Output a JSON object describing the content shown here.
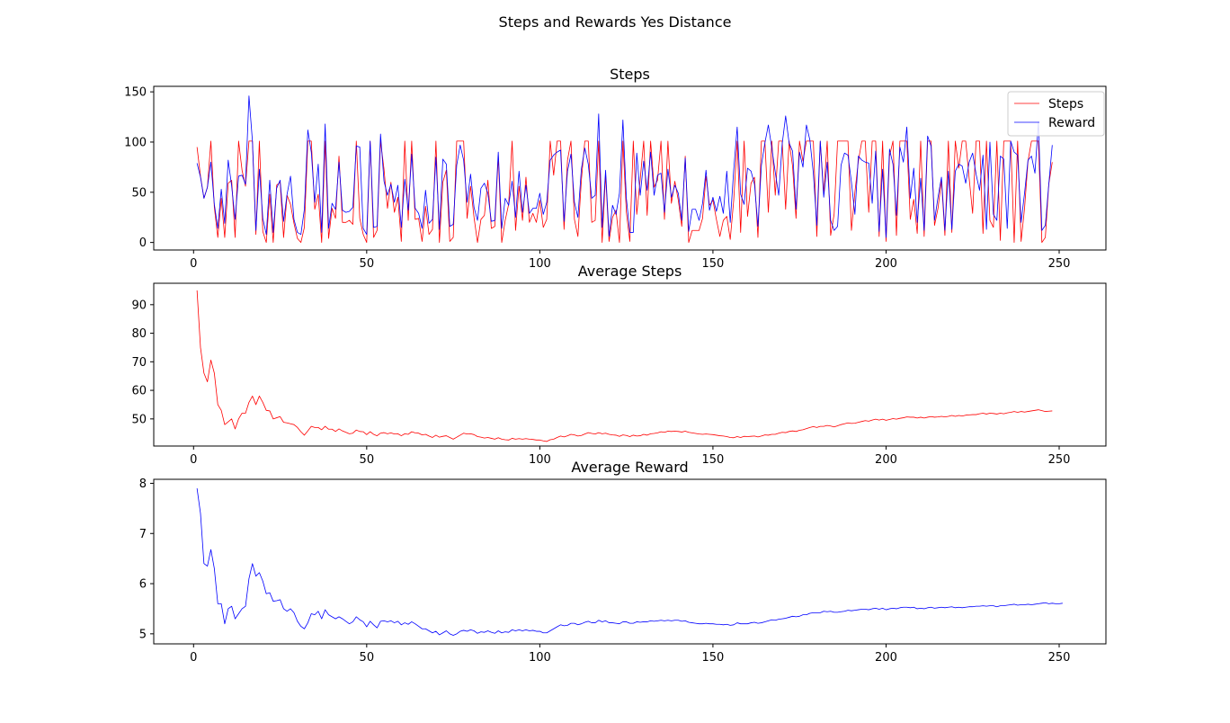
{
  "figure": {
    "suptitle": "Steps and Rewards Yes Distance"
  },
  "colors": {
    "steps": "#ff0000",
    "reward": "#0000ff",
    "axis": "#000000",
    "background": "#ffffff"
  },
  "chart_data": [
    {
      "type": "line",
      "title": "Steps",
      "xlabel": "",
      "ylabel": "",
      "xlim": [
        -11.5,
        263.5
      ],
      "ylim": [
        -7.5,
        155.5
      ],
      "xticks": [
        0,
        50,
        100,
        150,
        200,
        250
      ],
      "yticks": [
        0,
        50,
        100,
        150
      ],
      "grid": false,
      "legend": {
        "position": "top-right",
        "entries": [
          "Steps",
          "Reward"
        ]
      },
      "x_start": 1,
      "series": [
        {
          "name": "Steps",
          "color": "#ff0000",
          "values": [
            95,
            66,
            44,
            55,
            101,
            35,
            5,
            44,
            5,
            59,
            62,
            5,
            101,
            72,
            56,
            101,
            101,
            8,
            101,
            11,
            0,
            48,
            0,
            57,
            60,
            5,
            47,
            38,
            19,
            4,
            0,
            15,
            101,
            101,
            33,
            48,
            0,
            101,
            4,
            34,
            24,
            86,
            20,
            20,
            22,
            18,
            101,
            24,
            8,
            0,
            101,
            5,
            12,
            101,
            73,
            34,
            60,
            30,
            45,
            1,
            101,
            22,
            101,
            23,
            24,
            1,
            36,
            8,
            13,
            101,
            0,
            60,
            72,
            1,
            5,
            101,
            101,
            101,
            24,
            56,
            25,
            0,
            23,
            27,
            62,
            14,
            16,
            86,
            0,
            22,
            38,
            101,
            12,
            56,
            22,
            65,
            20,
            29,
            20,
            42,
            15,
            23,
            101,
            67,
            101,
            101,
            13,
            82,
            101,
            23,
            6,
            62,
            101,
            101,
            20,
            22,
            101,
            0,
            68,
            1,
            25,
            32,
            0,
            101,
            30,
            1,
            101,
            28,
            63,
            101,
            27,
            101,
            55,
            62,
            101,
            23,
            101,
            39,
            61,
            42,
            16,
            86,
            0,
            12,
            12,
            12,
            24,
            66,
            37,
            42,
            23,
            6,
            22,
            26,
            3,
            42,
            101,
            10,
            101,
            26,
            59,
            65,
            5,
            101,
            101,
            30,
            101,
            47,
            101,
            101,
            33,
            101,
            76,
            24,
            101,
            81,
            101,
            101,
            101,
            6,
            101,
            48,
            101,
            7,
            28,
            101,
            101,
            101,
            101,
            12,
            50,
            81,
            101,
            101,
            30,
            101,
            101,
            6,
            101,
            1,
            86,
            101,
            7,
            101,
            101,
            101,
            23,
            43,
            9,
            101,
            6,
            101,
            101,
            17,
            34,
            62,
            7,
            101,
            10,
            101,
            74,
            101,
            101,
            64,
            29,
            101,
            101,
            9,
            101,
            22,
            15,
            101,
            2,
            101,
            101,
            101,
            0,
            101,
            1,
            34,
            81,
            101,
            101,
            101,
            0,
            5,
            58,
            80
          ]
        },
        {
          "name": "Reward",
          "color": "#0000ff",
          "values": [
            79,
            65,
            44,
            55,
            80,
            38,
            14,
            53,
            19,
            82,
            56,
            23,
            66,
            67,
            58,
            146,
            101,
            12,
            73,
            24,
            8,
            62,
            10,
            54,
            62,
            21,
            48,
            66,
            23,
            10,
            8,
            33,
            112,
            90,
            40,
            78,
            10,
            118,
            14,
            39,
            33,
            80,
            32,
            30,
            31,
            35,
            96,
            95,
            14,
            8,
            101,
            15,
            16,
            108,
            61,
            47,
            58,
            40,
            57,
            15,
            63,
            32,
            88,
            34,
            29,
            14,
            52,
            19,
            23,
            85,
            13,
            83,
            78,
            16,
            18,
            77,
            97,
            82,
            40,
            68,
            35,
            22,
            54,
            59,
            49,
            21,
            22,
            90,
            14,
            44,
            37,
            61,
            25,
            71,
            30,
            57,
            29,
            34,
            34,
            49,
            28,
            40,
            82,
            87,
            90,
            92,
            21,
            71,
            88,
            40,
            25,
            73,
            94,
            78,
            44,
            47,
            128,
            15,
            72,
            6,
            37,
            28,
            49,
            122,
            44,
            10,
            10,
            89,
            47,
            81,
            52,
            90,
            47,
            67,
            69,
            30,
            73,
            45,
            57,
            49,
            22,
            84,
            11,
            33,
            33,
            22,
            39,
            72,
            32,
            45,
            31,
            46,
            29,
            71,
            20,
            72,
            115,
            48,
            38,
            74,
            71,
            58,
            16,
            77,
            99,
            117,
            94,
            70,
            47,
            98,
            126,
            99,
            91,
            33,
            90,
            75,
            117,
            102,
            69,
            17,
            101,
            45,
            80,
            22,
            12,
            16,
            77,
            89,
            87,
            60,
            28,
            86,
            82,
            80,
            79,
            39,
            91,
            11,
            73,
            5,
            93,
            78,
            27,
            95,
            80,
            115,
            44,
            74,
            20,
            64,
            12,
            106,
            96,
            22,
            45,
            65,
            12,
            71,
            13,
            71,
            78,
            76,
            59,
            80,
            89,
            68,
            52,
            87,
            13,
            100,
            28,
            22,
            86,
            83,
            14,
            101,
            90,
            87,
            20,
            49,
            82,
            86,
            69,
            120,
            12,
            17,
            58,
            97
          ]
        }
      ]
    },
    {
      "type": "line",
      "title": "Average Steps",
      "xlabel": "",
      "ylabel": "",
      "xlim": [
        -11.5,
        263.5
      ],
      "ylim": [
        40.5,
        97.5
      ],
      "xticks": [
        0,
        50,
        100,
        150,
        200,
        250
      ],
      "yticks": [
        50,
        60,
        70,
        80,
        90
      ],
      "grid": false,
      "x_start": 1,
      "series": [
        {
          "name": "",
          "color": "#ff0000",
          "values": [
            95,
            75,
            66,
            63,
            70.6,
            66,
            55,
            53,
            48,
            49,
            50,
            46.5,
            50,
            52,
            52,
            55.8,
            58,
            55,
            58,
            55.8,
            53,
            52.8,
            50,
            50.4,
            50.8,
            48.8,
            48.6,
            48.3,
            48,
            47,
            45.5,
            44.3,
            45.8,
            47.4,
            47,
            47,
            46.2,
            47.4,
            46.4,
            46.4,
            45.6,
            46.5,
            45.8,
            45.3,
            44.8,
            45,
            46.1,
            45.6,
            45.5,
            44.5,
            45.5,
            44.6,
            44.1,
            45,
            45.2,
            44.8,
            45.1,
            44.7,
            44.8,
            44.1,
            44.8,
            44.6,
            45.5,
            45.1,
            45,
            44.4,
            44.6,
            44,
            43.5,
            44.3,
            43.6,
            43.9,
            44.1,
            43.5,
            42.9,
            43.6,
            44.3,
            45,
            44.7,
            44.8,
            44.5,
            43.8,
            43.6,
            43.3,
            43.5,
            43.2,
            42.9,
            43.4,
            42.9,
            42.7,
            42.6,
            43.2,
            42.9,
            43.1,
            42.9,
            43.1,
            42.9,
            42.8,
            42.6,
            42.6,
            42.3,
            42.1,
            42.7,
            42.9,
            43.5,
            44,
            43.7,
            44.1,
            44.6,
            44.4,
            44,
            44.2,
            44.7,
            45.2,
            44.9,
            44.7,
            45.2,
            44.8,
            45,
            44.6,
            44.4,
            44.3,
            43.9,
            44.4,
            44.2,
            43.8,
            44.3,
            44,
            44.1,
            44.6,
            44.3,
            44.8,
            44.9,
            45.1,
            45.5,
            45.3,
            45.7,
            45.6,
            45.7,
            45.6,
            45.4,
            45.7,
            45.3,
            45.1,
            44.9,
            44.7,
            44.6,
            44.7,
            44.6,
            44.5,
            44.3,
            44.1,
            44,
            43.8,
            43.5,
            43.4,
            43.8,
            43.5,
            43.9,
            43.8,
            43.9,
            44,
            43.7,
            44,
            44.4,
            44.3,
            44.6,
            44.6,
            45,
            45.3,
            45.2,
            45.6,
            45.8,
            45.6,
            46,
            46.2,
            46.6,
            47,
            47.3,
            47,
            47.4,
            47.4,
            47.7,
            47.5,
            47.2,
            47.6,
            48,
            48.3,
            48.6,
            48.4,
            48.5,
            48.8,
            49.1,
            49.4,
            49.2,
            49.6,
            49.9,
            49.6,
            49.9,
            49.5,
            49.8,
            50.1,
            49.9,
            50.2,
            50.4,
            50.7,
            50.6,
            50.6,
            50.3,
            50.6,
            50.3,
            50.6,
            50.8,
            50.6,
            50.7,
            50.9,
            50.7,
            50.9,
            51.2,
            50.9,
            51.2,
            51,
            51.3,
            51.4,
            51.5,
            51.5,
            51.8,
            52,
            51.7,
            52,
            51.9,
            51.7,
            52,
            51.8,
            52.1,
            52.3,
            52.6,
            52.3,
            52.6,
            52.4,
            52.6,
            52.8,
            53,
            53.2,
            52.9,
            52.6,
            52.7,
            52.8
          ]
        }
      ]
    },
    {
      "type": "line",
      "title": "Average Reward",
      "xlabel": "",
      "ylabel": "",
      "xlim": [
        -11.5,
        263.5
      ],
      "ylim": [
        4.8,
        8.08
      ],
      "xticks": [
        0,
        50,
        100,
        150,
        200,
        250
      ],
      "yticks": [
        5,
        6,
        7,
        8
      ],
      "grid": false,
      "x_start": 1,
      "series": [
        {
          "name": "",
          "color": "#0000ff",
          "values": [
            7.9,
            7.4,
            6.4,
            6.35,
            6.68,
            6.3,
            5.6,
            5.6,
            5.2,
            5.5,
            5.55,
            5.3,
            5.4,
            5.5,
            5.55,
            6.1,
            6.4,
            6.15,
            6.22,
            6.05,
            5.8,
            5.82,
            5.65,
            5.66,
            5.68,
            5.5,
            5.45,
            5.5,
            5.42,
            5.25,
            5.15,
            5.1,
            5.22,
            5.4,
            5.38,
            5.45,
            5.3,
            5.48,
            5.38,
            5.34,
            5.3,
            5.34,
            5.3,
            5.25,
            5.2,
            5.24,
            5.34,
            5.28,
            5.24,
            5.14,
            5.25,
            5.18,
            5.12,
            5.25,
            5.26,
            5.24,
            5.26,
            5.22,
            5.25,
            5.18,
            5.22,
            5.19,
            5.24,
            5.2,
            5.15,
            5.1,
            5.1,
            5.06,
            5.02,
            5.05,
            4.98,
            5.02,
            5.06,
            5,
            4.97,
            5,
            5.05,
            5.07,
            5.05,
            5.08,
            5.06,
            5.01,
            5.04,
            5.03,
            5.06,
            5.03,
            5.01,
            5.06,
            5.02,
            5.04,
            5.03,
            5.08,
            5.06,
            5.08,
            5.06,
            5.08,
            5.06,
            5.07,
            5.05,
            5.05,
            5.02,
            5.02,
            5.06,
            5.1,
            5.14,
            5.18,
            5.16,
            5.17,
            5.21,
            5.21,
            5.18,
            5.2,
            5.23,
            5.25,
            5.22,
            5.22,
            5.27,
            5.24,
            5.26,
            5.22,
            5.22,
            5.21,
            5.2,
            5.24,
            5.24,
            5.21,
            5.21,
            5.24,
            5.23,
            5.24,
            5.24,
            5.26,
            5.25,
            5.26,
            5.27,
            5.26,
            5.27,
            5.26,
            5.27,
            5.27,
            5.25,
            5.26,
            5.23,
            5.22,
            5.21,
            5.2,
            5.2,
            5.21,
            5.2,
            5.2,
            5.19,
            5.19,
            5.18,
            5.19,
            5.17,
            5.18,
            5.22,
            5.2,
            5.2,
            5.2,
            5.22,
            5.23,
            5.21,
            5.22,
            5.24,
            5.26,
            5.28,
            5.27,
            5.29,
            5.3,
            5.31,
            5.33,
            5.35,
            5.34,
            5.35,
            5.38,
            5.38,
            5.41,
            5.42,
            5.42,
            5.42,
            5.45,
            5.44,
            5.45,
            5.43,
            5.43,
            5.44,
            5.45,
            5.47,
            5.46,
            5.47,
            5.48,
            5.49,
            5.49,
            5.48,
            5.5,
            5.51,
            5.49,
            5.51,
            5.48,
            5.5,
            5.51,
            5.5,
            5.52,
            5.53,
            5.53,
            5.52,
            5.53,
            5.5,
            5.51,
            5.5,
            5.52,
            5.53,
            5.51,
            5.52,
            5.53,
            5.52,
            5.53,
            5.54,
            5.52,
            5.53,
            5.52,
            5.53,
            5.54,
            5.54,
            5.55,
            5.55,
            5.56,
            5.55,
            5.56,
            5.56,
            5.54,
            5.56,
            5.56,
            5.57,
            5.58,
            5.59,
            5.57,
            5.58,
            5.58,
            5.59,
            5.58,
            5.59,
            5.6,
            5.61,
            5.62,
            5.6,
            5.61,
            5.6,
            5.6,
            5.61
          ]
        }
      ]
    }
  ]
}
